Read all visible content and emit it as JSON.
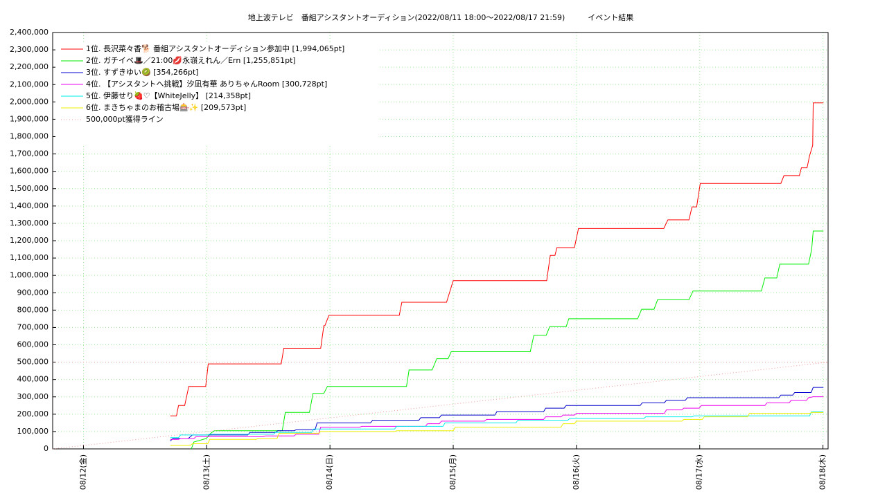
{
  "chart_data": {
    "type": "line",
    "title": "地上波テレビ　番組アシスタントオーディション(2022/08/11 18:00〜2022/08/17 21:59)　　　イベント結果",
    "xlim": [
      0,
      151
    ],
    "xticks": [
      {
        "value": 6,
        "label": "08/12(金)"
      },
      {
        "value": 30,
        "label": "08/13(土)"
      },
      {
        "value": 54,
        "label": "08/14(日)"
      },
      {
        "value": 78,
        "label": "08/15(月)"
      },
      {
        "value": 102,
        "label": "08/16(火)"
      },
      {
        "value": 126,
        "label": "08/17(水)"
      },
      {
        "value": 150,
        "label": "08/18(木)"
      }
    ],
    "ylim": [
      0,
      2400000
    ],
    "yticks": [
      0,
      {
        "value": 100000,
        "label": "100,000"
      },
      {
        "value": 200000,
        "label": "200,000"
      },
      {
        "value": 300000,
        "label": "300,000"
      },
      {
        "value": 400000,
        "label": "400,000"
      },
      {
        "value": 500000,
        "label": "500,000"
      },
      {
        "value": 600000,
        "label": "600,000"
      },
      {
        "value": 700000,
        "label": "700,000"
      },
      {
        "value": 800000,
        "label": "800,000"
      },
      {
        "value": 900000,
        "label": "900,000"
      },
      {
        "value": 1000000,
        "label": "1,000,000"
      },
      {
        "value": 1100000,
        "label": "1,100,000"
      },
      {
        "value": 1200000,
        "label": "1,200,000"
      },
      {
        "value": 1300000,
        "label": "1,300,000"
      },
      {
        "value": 1400000,
        "label": "1,400,000"
      },
      {
        "value": 1500000,
        "label": "1,500,000"
      },
      {
        "value": 1600000,
        "label": "1,600,000"
      },
      {
        "value": 1700000,
        "label": "1,700,000"
      },
      {
        "value": 1800000,
        "label": "1,800,000"
      },
      {
        "value": 1900000,
        "label": "1,900,000"
      },
      {
        "value": 2000000,
        "label": "2,000,000"
      },
      {
        "value": 2100000,
        "label": "2,100,000"
      },
      {
        "value": 2200000,
        "label": "2,200,000"
      },
      {
        "value": 2300000,
        "label": "2,300,000"
      },
      {
        "value": 2400000,
        "label": "2,400,000"
      }
    ],
    "grid": true,
    "legend": "upper left",
    "reference_level": 500000,
    "series": [
      {
        "name": "1位. 長沢菜々香🐕 番組アシスタントオーディション参加中 [1,994,065pt]",
        "color": "#ff0000",
        "x": [
          22.9,
          24.1,
          24.5,
          25.7,
          26.5,
          29.8,
          30.3,
          44.5,
          45,
          52.2,
          52.8,
          53,
          53.8,
          67.5,
          68,
          76.7,
          78,
          96.2,
          96.9,
          97.8,
          98.2,
          101.6,
          102.4,
          119,
          119.8,
          123.9,
          124.5,
          125.4,
          126.1,
          141.8,
          142.4,
          145.4,
          145.8,
          146.9,
          147.4,
          148,
          148.1,
          150.1
        ],
        "values": [
          190000,
          190000,
          250000,
          250000,
          360000,
          360000,
          490000,
          490000,
          580000,
          580000,
          710000,
          710000,
          770000,
          770000,
          845000,
          845000,
          970000,
          970000,
          1115000,
          1115000,
          1160000,
          1160000,
          1270000,
          1270000,
          1320000,
          1320000,
          1395000,
          1395000,
          1530000,
          1530000,
          1575000,
          1575000,
          1620000,
          1620000,
          1690000,
          1750000,
          1994065,
          1994065
        ]
      },
      {
        "name": "2位. ガチイベ🎩／21:00💋永嶺えれん／Ern [1,255,851pt]",
        "color": "#00ee00",
        "x": [
          27,
          27.5,
          29.9,
          30.8,
          31.5,
          44.7,
          45.3,
          50,
          50.7,
          52.8,
          53.5,
          68.9,
          69.4,
          73.9,
          74.8,
          77,
          77.6,
          93,
          93.7,
          96.1,
          96.8,
          100,
          100.5,
          113.9,
          114.7,
          117.1,
          117.8,
          123.9,
          124.7,
          138,
          138.7,
          141,
          141.6,
          147.2,
          147.8,
          148.1,
          150.1
        ],
        "values": [
          0,
          40000,
          60000,
          90000,
          105000,
          105000,
          210000,
          210000,
          320000,
          320000,
          360000,
          360000,
          455000,
          455000,
          520000,
          520000,
          560000,
          560000,
          655000,
          655000,
          705000,
          705000,
          750000,
          750000,
          805000,
          805000,
          860000,
          860000,
          910000,
          910000,
          985000,
          985000,
          1065000,
          1065000,
          1150000,
          1255851,
          1255851
        ]
      },
      {
        "name": "3位. すずきゆい🥝 [354,266pt]",
        "color": "#0000cc",
        "x": [
          22.9,
          23.4,
          26.4,
          27.2,
          38,
          38.4,
          43.4,
          43.8,
          47,
          47.4,
          51.1,
          51.5,
          61.9,
          62.3,
          71.3,
          71.7,
          75.3,
          75.7,
          86.1,
          86.5,
          95.6,
          96,
          99.6,
          100,
          114.4,
          114.8,
          119.1,
          119.5,
          123.2,
          123.6,
          141.4,
          141.8,
          144.1,
          144.5,
          147.7,
          148.1,
          150.1
        ],
        "values": [
          45000,
          60000,
          60000,
          80000,
          80000,
          95000,
          95000,
          105000,
          105000,
          110000,
          110000,
          150000,
          150000,
          165000,
          165000,
          180000,
          180000,
          195000,
          195000,
          215000,
          215000,
          235000,
          235000,
          250000,
          250000,
          265000,
          265000,
          280000,
          280000,
          295000,
          295000,
          310000,
          310000,
          325000,
          325000,
          354266,
          354266
        ]
      },
      {
        "name": "4位. 【アシスタントへ挑戦】汐凪有華 ありちゃんRoom [300,728pt]",
        "color": "#ee00ee",
        "x": [
          22.9,
          24.5,
          24.9,
          27.5,
          27.9,
          41,
          41.4,
          47,
          47.4,
          51.8,
          52.2,
          59.8,
          60.2,
          72.6,
          73,
          75.3,
          75.7,
          84.1,
          84.5,
          95.6,
          96,
          99,
          99.4,
          101.6,
          102,
          119.1,
          119.5,
          122.5,
          122.9,
          125.9,
          126.3,
          138.7,
          139.1,
          143.4,
          143.8,
          146.8,
          147.2,
          148.1,
          150.1
        ],
        "values": [
          55000,
          55000,
          60000,
          60000,
          70000,
          70000,
          75000,
          75000,
          85000,
          85000,
          125000,
          125000,
          130000,
          130000,
          145000,
          145000,
          160000,
          160000,
          170000,
          170000,
          185000,
          185000,
          195000,
          195000,
          205000,
          205000,
          225000,
          225000,
          235000,
          235000,
          250000,
          250000,
          265000,
          265000,
          280000,
          280000,
          295000,
          300728,
          300728
        ]
      },
      {
        "name": "5位. 伊藤せり🍓♡【WhiteJelly】 [214,358pt]",
        "color": "#00eeee",
        "x": [
          22.9,
          24.5,
          24.9,
          30.2,
          30.6,
          43,
          43.4,
          50.4,
          50.8,
          66.6,
          67,
          76,
          76.4,
          90.2,
          90.6,
          100.3,
          100.7,
          115.1,
          115.5,
          124.5,
          124.9,
          147.4,
          147.8,
          150.1
        ],
        "values": [
          65000,
          65000,
          80000,
          80000,
          85000,
          85000,
          95000,
          95000,
          115000,
          115000,
          130000,
          130000,
          150000,
          150000,
          165000,
          165000,
          175000,
          175000,
          185000,
          185000,
          190000,
          190000,
          214358,
          214358
        ]
      },
      {
        "name": "6位. まきちゃまのお稽古場🎰✨ [209,573pt]",
        "color": "#eeee00",
        "x": [
          22.9,
          26.8,
          27.2,
          30.2,
          30.6,
          39.6,
          40,
          43.7,
          44.1,
          51.8,
          52.2,
          66.6,
          67,
          78,
          78.4,
          99,
          99.4,
          101.6,
          102,
          122.5,
          122.9,
          126.5,
          126.9,
          135.3,
          135.7,
          147.4,
          147.8,
          150.1
        ],
        "values": [
          20000,
          20000,
          30000,
          30000,
          55000,
          55000,
          60000,
          60000,
          90000,
          90000,
          100000,
          100000,
          105000,
          105000,
          125000,
          125000,
          145000,
          145000,
          160000,
          160000,
          170000,
          170000,
          185000,
          185000,
          205000,
          205000,
          209573,
          209573
        ]
      },
      {
        "name": "500,000pt獲得ライン",
        "color": "#ee9999",
        "dashed": true,
        "x": [
          0,
          151
        ],
        "values": [
          0,
          500000
        ]
      }
    ]
  }
}
